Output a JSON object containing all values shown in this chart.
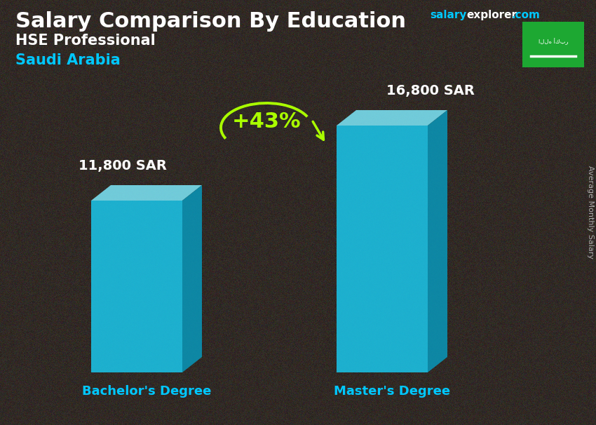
{
  "title_main": "Salary Comparison By Education",
  "subtitle_job": "HSE Professional",
  "subtitle_country": "Saudi Arabia",
  "bar1_label": "Bachelor's Degree",
  "bar2_label": "Master's Degree",
  "bar1_value": 11800,
  "bar2_value": 16800,
  "bar1_value_str": "11,800 SAR",
  "bar2_value_str": "16,800 SAR",
  "percent_change": "+43%",
  "ylabel": "Average Monthly Salary",
  "bar_face_color": "#1AC8ED",
  "bar_top_color": "#7DE8FA",
  "bar_side_color": "#0898BB",
  "bg_color": "#3a3a3a",
  "title_color": "#ffffff",
  "subtitle_job_color": "#ffffff",
  "subtitle_country_color": "#00C8FF",
  "bar_label_color": "#00C8FF",
  "value_label_color": "#ffffff",
  "percent_color": "#AAFF00",
  "arrow_color": "#AAFF00",
  "flag_bg_color": "#1da832",
  "salary_text_color": "#00C8FF",
  "explorer_text_color": "#ffffff",
  "overlay_color": "#1e1e1e"
}
